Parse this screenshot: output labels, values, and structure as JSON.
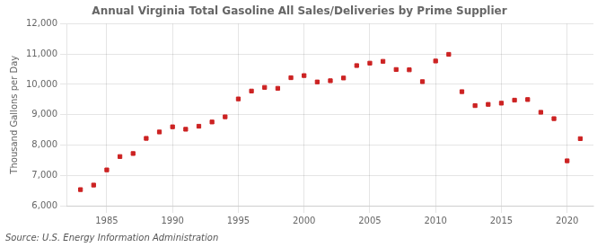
{
  "chart_data": {
    "type": "scatter",
    "title": "Annual Virginia Total Gasoline All Sales/Deliveries by Prime Supplier",
    "ylabel": "Thousand Gallons per Day",
    "annotations": [
      "Source: U.S. Energy Information Administration"
    ],
    "color": "#cc2222",
    "marker": "square",
    "grid": true,
    "xlim": [
      1982,
      2022
    ],
    "xticks": [
      1985,
      1990,
      1995,
      2000,
      2005,
      2010,
      2015,
      2020
    ],
    "ylim": [
      6000,
      12000
    ],
    "yticks": [
      {
        "value": 6000,
        "label": "6,000"
      },
      {
        "value": 7000,
        "label": "7,000"
      },
      {
        "value": 8000,
        "label": "8,000"
      },
      {
        "value": 9000,
        "label": "9,000"
      },
      {
        "value": 10000,
        "label": "10,000"
      },
      {
        "value": 11000,
        "label": "11,000"
      },
      {
        "value": 12000,
        "label": "12,000"
      }
    ],
    "x": [
      1983,
      1984,
      1985,
      1986,
      1987,
      1988,
      1989,
      1990,
      1991,
      1992,
      1993,
      1994,
      1995,
      1996,
      1997,
      1998,
      1999,
      2000,
      2001,
      2002,
      2003,
      2004,
      2005,
      2006,
      2007,
      2008,
      2009,
      2010,
      2011,
      2012,
      2013,
      2014,
      2015,
      2016,
      2017,
      2018,
      2019,
      2020,
      2021
    ],
    "values": [
      6530,
      6680,
      7180,
      7620,
      7720,
      8220,
      8430,
      8600,
      8520,
      8620,
      8760,
      8930,
      9520,
      9780,
      9900,
      9870,
      10220,
      10290,
      10080,
      10120,
      10210,
      10620,
      10700,
      10760,
      10490,
      10480,
      10090,
      10770,
      10990,
      9760,
      9300,
      9340,
      9380,
      9480,
      9500,
      9080,
      8870,
      7480,
      8210
    ]
  }
}
